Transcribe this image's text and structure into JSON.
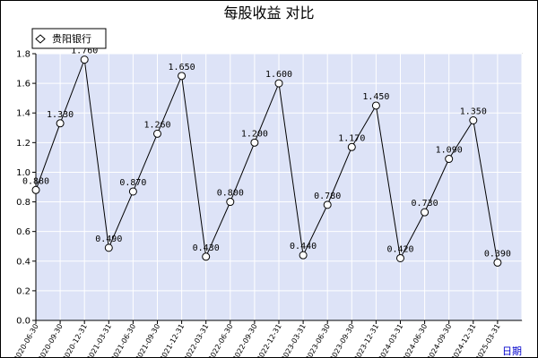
{
  "chart_data": {
    "type": "line",
    "title": "每股收益  对比",
    "xlabel": "日期",
    "ylabel": "",
    "ylim": [
      0,
      1.8
    ],
    "yticks": [
      "0.0",
      "0.2",
      "0.4",
      "0.6",
      "0.8",
      "1.0",
      "1.2",
      "1.4",
      "1.6",
      "1.8"
    ],
    "grid": true,
    "legend_position": "top-left",
    "categories": [
      "2020-06-30",
      "2020-09-30",
      "2020-12-31",
      "2021-03-31",
      "2021-06-30",
      "2021-09-30",
      "2021-12-31",
      "2022-03-31",
      "2022-06-30",
      "2022-09-30",
      "2022-12-31",
      "2023-03-31",
      "2023-06-30",
      "2023-09-30",
      "2023-12-31",
      "2024-03-31",
      "2024-06-30",
      "2024-09-30",
      "2024-12-31",
      "2025-03-31"
    ],
    "series": [
      {
        "name": "贵阳银行",
        "values": [
          0.88,
          1.33,
          1.76,
          0.49,
          0.87,
          1.26,
          1.65,
          0.43,
          0.8,
          1.2,
          1.6,
          0.44,
          0.78,
          1.17,
          1.45,
          0.42,
          0.73,
          1.09,
          1.35,
          0.39
        ],
        "labels": [
          "0.880",
          "1.330",
          "1.760",
          "0.490",
          "0.870",
          "1.260",
          "1.650",
          "0.430",
          "0.800",
          "1.200",
          "1.600",
          "0.440",
          "0.780",
          "1.170",
          "1.450",
          "0.420",
          "0.730",
          "1.090",
          "1.350",
          "0.390"
        ],
        "color": "#000000"
      }
    ],
    "colors": {
      "plot_background": "#dde3f7",
      "grid": "#ffffff",
      "axis_title": "#0000cc"
    }
  }
}
